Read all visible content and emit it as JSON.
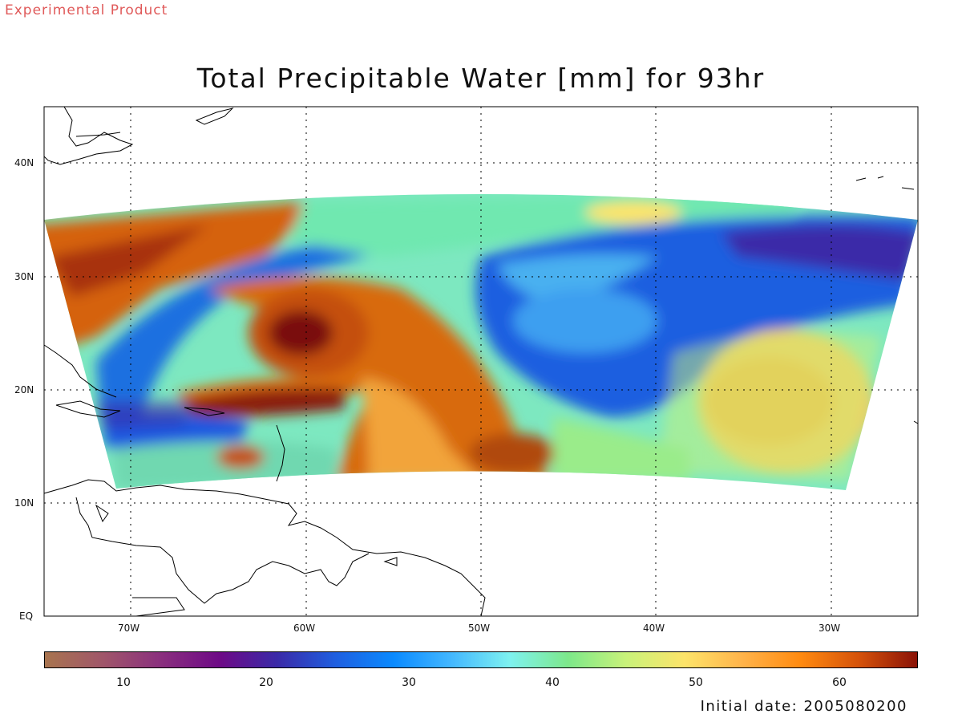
{
  "header": {
    "experimental": "Experimental Product"
  },
  "title": "Total Precipitable Water [mm] for 93hr",
  "map": {
    "lat_labels": [
      "40N",
      "30N",
      "20N",
      "10N",
      "EQ"
    ],
    "lon_labels": [
      "70W",
      "60W",
      "50W",
      "40W",
      "30W"
    ]
  },
  "colorbar": {
    "labels": [
      "10",
      "20",
      "30",
      "40",
      "50",
      "60"
    ],
    "colors": [
      "#a8744f",
      "#a0566a",
      "#8a2f7e",
      "#6e0a86",
      "#3a2aa8",
      "#1f5fe0",
      "#0a8aff",
      "#44b8ff",
      "#7ef2f0",
      "#7de88a",
      "#c9f27a",
      "#fde46a",
      "#ffb34a",
      "#ff8a10",
      "#d5520a",
      "#8a1207"
    ]
  },
  "footer": {
    "initial_date": "Initial date: 2005080200"
  }
}
